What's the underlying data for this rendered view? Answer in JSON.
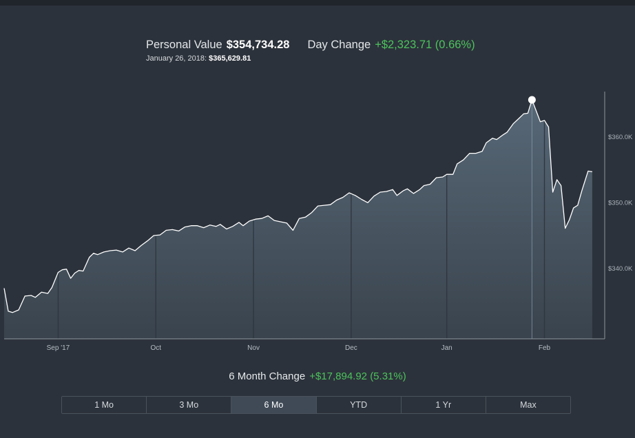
{
  "header": {
    "personal_value_label": "Personal Value",
    "personal_value": "$354,734.28",
    "day_change_label": "Day Change",
    "day_change": "+$2,323.71 (0.66%)",
    "hover_date": "January 26, 2018:",
    "hover_value": "$365,629.81"
  },
  "summary": {
    "change_label": "6 Month Change",
    "change_value": "+$17,894.92 (5.31%)"
  },
  "range_selector": {
    "options": [
      "1 Mo",
      "3 Mo",
      "6 Mo",
      "YTD",
      "1 Yr",
      "Max"
    ],
    "selected": "6 Mo"
  },
  "colors": {
    "background": "#2c323b",
    "line": "#ffffff",
    "positive": "#4cc35c"
  },
  "chart_data": {
    "type": "area",
    "xlabel": "",
    "ylabel": "",
    "x_tick_labels": [
      "Sep '17",
      "Oct",
      "Nov",
      "Dec",
      "Jan",
      "Feb"
    ],
    "x_tick_positions": [
      0.13,
      0.365,
      0.6,
      0.835,
      1.065,
      1.3
    ],
    "y_tick_labels": [
      "$340.0K",
      "$350.0K",
      "$360.0K"
    ],
    "y_tick_values": [
      340000,
      350000,
      360000
    ],
    "ylim": [
      329300,
      367200
    ],
    "xlim": [
      0,
      1.445
    ],
    "highlight": {
      "x": 1.27,
      "y": 365630,
      "date": "January 26, 2018"
    },
    "grid": false,
    "series": [
      {
        "values": [
          [
            0.0,
            337000
          ],
          [
            0.01,
            333500
          ],
          [
            0.02,
            333300
          ],
          [
            0.035,
            333700
          ],
          [
            0.05,
            335800
          ],
          [
            0.065,
            335900
          ],
          [
            0.075,
            335600
          ],
          [
            0.09,
            336400
          ],
          [
            0.105,
            336200
          ],
          [
            0.115,
            337100
          ],
          [
            0.13,
            339400
          ],
          [
            0.14,
            339800
          ],
          [
            0.15,
            339900
          ],
          [
            0.16,
            338500
          ],
          [
            0.17,
            339300
          ],
          [
            0.18,
            339700
          ],
          [
            0.19,
            339600
          ],
          [
            0.205,
            341700
          ],
          [
            0.215,
            342300
          ],
          [
            0.225,
            342100
          ],
          [
            0.24,
            342500
          ],
          [
            0.255,
            342700
          ],
          [
            0.27,
            342800
          ],
          [
            0.285,
            342500
          ],
          [
            0.3,
            343100
          ],
          [
            0.315,
            342700
          ],
          [
            0.33,
            343500
          ],
          [
            0.345,
            344200
          ],
          [
            0.36,
            345000
          ],
          [
            0.375,
            345100
          ],
          [
            0.39,
            345800
          ],
          [
            0.405,
            345900
          ],
          [
            0.42,
            345700
          ],
          [
            0.435,
            346300
          ],
          [
            0.45,
            346500
          ],
          [
            0.465,
            346500
          ],
          [
            0.48,
            346200
          ],
          [
            0.495,
            346600
          ],
          [
            0.51,
            346400
          ],
          [
            0.52,
            346700
          ],
          [
            0.535,
            346000
          ],
          [
            0.55,
            346400
          ],
          [
            0.565,
            347000
          ],
          [
            0.575,
            346500
          ],
          [
            0.59,
            347200
          ],
          [
            0.605,
            347500
          ],
          [
            0.62,
            347600
          ],
          [
            0.635,
            348000
          ],
          [
            0.65,
            347300
          ],
          [
            0.665,
            347100
          ],
          [
            0.68,
            346900
          ],
          [
            0.695,
            345800
          ],
          [
            0.71,
            347600
          ],
          [
            0.725,
            347800
          ],
          [
            0.74,
            348500
          ],
          [
            0.755,
            349500
          ],
          [
            0.77,
            349600
          ],
          [
            0.785,
            349700
          ],
          [
            0.8,
            350400
          ],
          [
            0.815,
            350800
          ],
          [
            0.83,
            351500
          ],
          [
            0.845,
            351100
          ],
          [
            0.86,
            350500
          ],
          [
            0.875,
            350000
          ],
          [
            0.89,
            351000
          ],
          [
            0.905,
            351600
          ],
          [
            0.92,
            351700
          ],
          [
            0.935,
            352000
          ],
          [
            0.945,
            351100
          ],
          [
            0.96,
            351800
          ],
          [
            0.97,
            352100
          ],
          [
            0.985,
            351400
          ],
          [
            1.0,
            352000
          ],
          [
            1.01,
            352600
          ],
          [
            1.025,
            352800
          ],
          [
            1.04,
            353800
          ],
          [
            1.055,
            353900
          ],
          [
            1.065,
            354300
          ],
          [
            1.08,
            354300
          ],
          [
            1.09,
            355900
          ],
          [
            1.105,
            356500
          ],
          [
            1.12,
            357500
          ],
          [
            1.135,
            357500
          ],
          [
            1.15,
            357800
          ],
          [
            1.16,
            359100
          ],
          [
            1.175,
            359800
          ],
          [
            1.185,
            359600
          ],
          [
            1.2,
            360300
          ],
          [
            1.21,
            360700
          ],
          [
            1.225,
            362000
          ],
          [
            1.24,
            362900
          ],
          [
            1.25,
            363500
          ],
          [
            1.26,
            363600
          ],
          [
            1.27,
            365630
          ],
          [
            1.28,
            364000
          ],
          [
            1.29,
            362300
          ],
          [
            1.3,
            362500
          ],
          [
            1.31,
            361500
          ],
          [
            1.32,
            351600
          ],
          [
            1.33,
            353500
          ],
          [
            1.34,
            352600
          ],
          [
            1.35,
            346100
          ],
          [
            1.36,
            347400
          ],
          [
            1.37,
            349200
          ],
          [
            1.38,
            349600
          ],
          [
            1.39,
            351800
          ],
          [
            1.405,
            354800
          ],
          [
            1.415,
            354700
          ]
        ]
      }
    ]
  }
}
